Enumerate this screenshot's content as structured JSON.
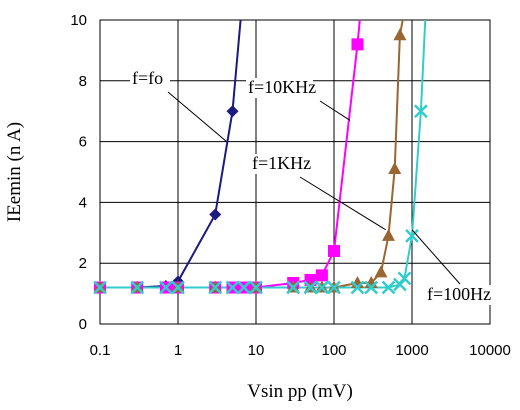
{
  "chart_data": {
    "type": "line",
    "xlabel": "Vsin pp (mV)",
    "ylabel": "IEemin (n A)",
    "x_scale": "log",
    "xlim": [
      0.1,
      10000
    ],
    "ylim": [
      0,
      10
    ],
    "grid": true,
    "x_ticks": [
      "0.1",
      "1",
      "10",
      "100",
      "1000",
      "10000"
    ],
    "y_ticks": [
      "0",
      "2",
      "4",
      "6",
      "8",
      "10"
    ],
    "series": [
      {
        "name": "f=fo",
        "color": "#1a1a80",
        "marker": "diamond",
        "x": [
          0.1,
          0.3,
          0.7,
          1,
          3,
          5,
          6.5
        ],
        "y": [
          1.2,
          1.2,
          1.25,
          1.4,
          3.6,
          7.0,
          10.3
        ]
      },
      {
        "name": "f=10KHz",
        "color": "#ff00ff",
        "marker": "square",
        "x": [
          0.1,
          0.3,
          0.7,
          1,
          3,
          5,
          7,
          10,
          30,
          50,
          70,
          100,
          200,
          220
        ],
        "y": [
          1.2,
          1.2,
          1.2,
          1.2,
          1.2,
          1.2,
          1.2,
          1.2,
          1.35,
          1.45,
          1.6,
          2.4,
          9.2,
          10.3
        ]
      },
      {
        "name": "f=1KHz",
        "color": "#996633",
        "marker": "triangle",
        "x": [
          0.1,
          0.3,
          1,
          3,
          10,
          30,
          50,
          70,
          100,
          200,
          300,
          400,
          500,
          600,
          700,
          800,
          900
        ],
        "y": [
          1.2,
          1.2,
          1.2,
          1.2,
          1.2,
          1.2,
          1.2,
          1.2,
          1.2,
          1.35,
          1.35,
          1.7,
          2.9,
          5.1,
          9.5,
          10.3,
          10.3
        ]
      },
      {
        "name": "f=100Hz",
        "color": "#33cccc",
        "marker": "x",
        "x": [
          0.1,
          0.3,
          0.7,
          1,
          3,
          5,
          7,
          10,
          30,
          50,
          70,
          100,
          200,
          300,
          500,
          700,
          800,
          1000,
          1300,
          1500
        ],
        "y": [
          1.2,
          1.2,
          1.2,
          1.2,
          1.2,
          1.2,
          1.2,
          1.2,
          1.2,
          1.2,
          1.2,
          1.2,
          1.2,
          1.2,
          1.2,
          1.3,
          1.5,
          2.9,
          7.0,
          10.3
        ]
      }
    ],
    "annotations": [
      {
        "text": "f=fo",
        "series": 0,
        "point_x": 4.2,
        "point_y": 6.0
      },
      {
        "text": "f=10KHz",
        "series": 1,
        "point_x": 160,
        "point_y": 6.7
      },
      {
        "text": "f=1KHz",
        "series": 2,
        "point_x": 460,
        "point_y": 3.1
      },
      {
        "text": "f=100Hz",
        "series": 3,
        "point_x": 1000,
        "point_y": 3.1
      }
    ]
  }
}
